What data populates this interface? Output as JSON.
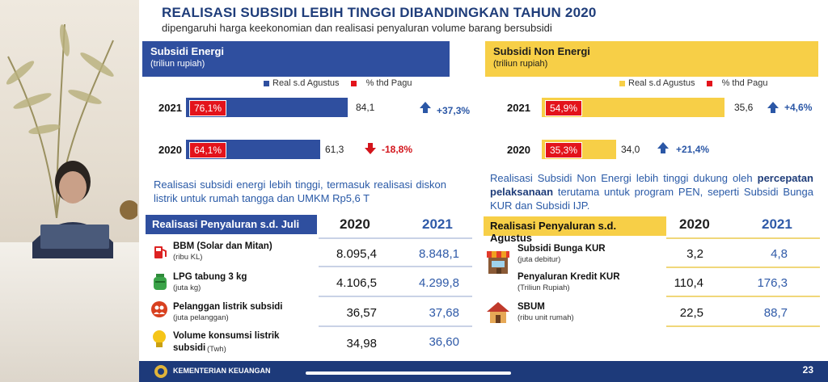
{
  "slide": {
    "title": "REALISASI SUBSIDI LEBIH TINGGI DIBANDINGKAN TAHUN 2020",
    "subtitle": "dipengaruhi harga keekonomian dan realisasi penyaluran volume barang bersubsidi",
    "page_number": "23",
    "footer_org": "KEMENTERIAN KEUANGAN"
  },
  "energi": {
    "header_title": "Subsidi Energi",
    "header_unit": "(triliun rupiah)",
    "legend_real": "Real s.d Agustus",
    "legend_pct": "% thd Pagu",
    "rows": [
      {
        "year": "2021",
        "pct": "76,1%",
        "value": "84,1",
        "change": "+37,3%"
      },
      {
        "year": "2020",
        "pct": "64,1%",
        "value": "61,3",
        "change": "-18,8%"
      }
    ],
    "note": "Realisasi subsidi energi lebih tinggi, termasuk realisasi diskon listrik untuk rumah tangga dan UMKM Rp5,6 T",
    "table_title": "Realisasi Penyaluran s.d. Juli",
    "col_2020": "2020",
    "col_2021": "2021",
    "items": [
      {
        "title": "BBM (Solar dan Mitan)",
        "unit": "(ribu KL)",
        "v2020": "8.095,4",
        "v2021": "8.848,1"
      },
      {
        "title": "LPG tabung 3 kg",
        "unit": "(juta kg)",
        "v2020": "4.106,5",
        "v2021": "4.299,8"
      },
      {
        "title": "Pelanggan listrik subsidi",
        "unit": "(juta pelanggan)",
        "v2020": "36,57",
        "v2021": "37,68"
      },
      {
        "title": "Volume konsumsi listrik",
        "title2": "subsidi",
        "unit": "(Twh)",
        "v2020": "34,98",
        "v2021": "36,60"
      }
    ]
  },
  "non_energi": {
    "header_title": "Subsidi Non Energi",
    "header_unit": "(triliun rupiah)",
    "legend_real": "Real s.d Agustus",
    "legend_pct": "% thd Pagu",
    "rows": [
      {
        "year": "2021",
        "pct": "54,9%",
        "value": "35,6",
        "change": "+4,6%"
      },
      {
        "year": "2020",
        "pct": "35,3%",
        "value": "34,0",
        "change": "+21,4%"
      }
    ],
    "note_a": "Realisasi Subsidi Non Energi lebih tinggi dukung oleh",
    "note_bold": "percepatan pelaksanaan",
    "note_b": "terutama untuk program PEN, seperti Subsidi Bunga KUR dan Subsidi IJP.",
    "table_title": "Realisasi Penyaluran s.d. Agustus",
    "col_2020": "2020",
    "col_2021": "2021",
    "items": [
      {
        "title": "Subsidi Bunga KUR",
        "unit": "(juta debitur)",
        "v2020": "3,2",
        "v2021": "4,8"
      },
      {
        "title": "Penyaluran Kredit KUR",
        "unit": "(Triliun Rupiah)",
        "v2020": "110,4",
        "v2021": "176,3"
      },
      {
        "title": "SBUM",
        "unit": "(ribu unit rumah)",
        "v2020": "22,5",
        "v2021": "88,7"
      }
    ]
  },
  "colors": {
    "blue": "#2f4f9f",
    "yellow": "#f7cf47",
    "red": "#e3131b",
    "text_blue": "#2a5aa7"
  }
}
